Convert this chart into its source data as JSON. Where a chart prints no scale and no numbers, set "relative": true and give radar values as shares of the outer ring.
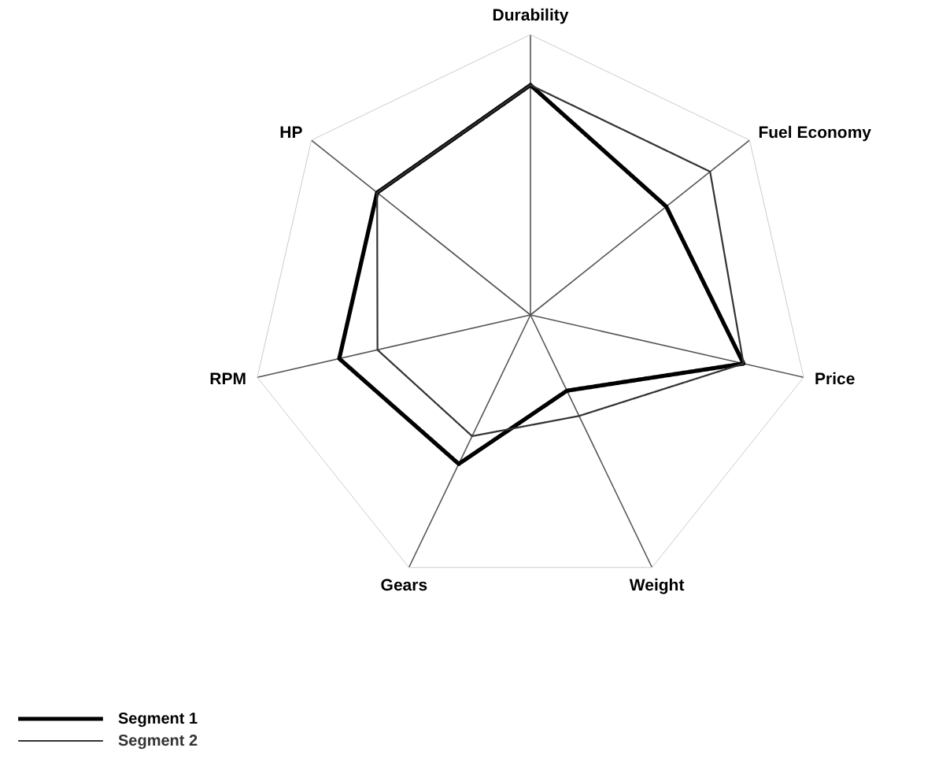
{
  "chart_data": {
    "type": "radar",
    "relative": true,
    "categories": [
      "Durability",
      "Fuel Economy",
      "Price",
      "Weight",
      "Gears",
      "RPM",
      "HP"
    ],
    "series": [
      {
        "name": "Segment 1",
        "color": "#000000",
        "values": [
          0.82,
          0.62,
          0.78,
          0.3,
          0.59,
          0.7,
          0.7
        ]
      },
      {
        "name": "Segment 2",
        "color": "#333333",
        "values": [
          0.82,
          0.82,
          0.78,
          0.4,
          0.48,
          0.56,
          0.7
        ]
      }
    ],
    "legend": "bottom left",
    "line_style": "solid"
  }
}
